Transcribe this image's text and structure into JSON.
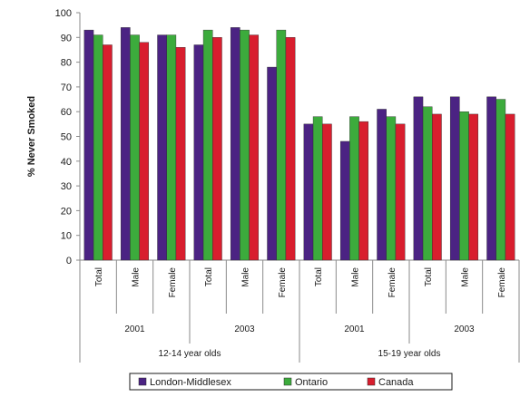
{
  "chart_data": {
    "type": "bar",
    "ylabel": "% Never Smoked",
    "ylim": [
      0,
      100
    ],
    "yticks": [
      0,
      10,
      20,
      30,
      40,
      50,
      60,
      70,
      80,
      90,
      100
    ],
    "grid": false,
    "legend_position": "bottom",
    "categories": [
      "Total",
      "Male",
      "Female",
      "Total",
      "Male",
      "Female",
      "Total",
      "Male",
      "Female",
      "Total",
      "Male",
      "Female"
    ],
    "year_groups": [
      {
        "label": "2001",
        "span": [
          0,
          2
        ]
      },
      {
        "label": "2003",
        "span": [
          3,
          5
        ]
      },
      {
        "label": "2001",
        "span": [
          6,
          8
        ]
      },
      {
        "label": "2003",
        "span": [
          9,
          11
        ]
      }
    ],
    "age_groups": [
      {
        "label": "12-14 year olds",
        "span": [
          0,
          5
        ]
      },
      {
        "label": "15-19 year olds",
        "span": [
          6,
          11
        ]
      }
    ],
    "series": [
      {
        "name": "London-Middlesex",
        "color": "#4b2383",
        "values": [
          93,
          94,
          91,
          87,
          94,
          78,
          55,
          48,
          61,
          66,
          66,
          66
        ]
      },
      {
        "name": "Ontario",
        "color": "#3cab3c",
        "values": [
          91,
          91,
          91,
          93,
          93,
          93,
          58,
          58,
          58,
          62,
          60,
          65
        ]
      },
      {
        "name": "Canada",
        "color": "#d81e2e",
        "values": [
          87,
          88,
          86,
          90,
          91,
          90,
          55,
          56,
          55,
          59,
          59,
          59
        ]
      }
    ]
  }
}
